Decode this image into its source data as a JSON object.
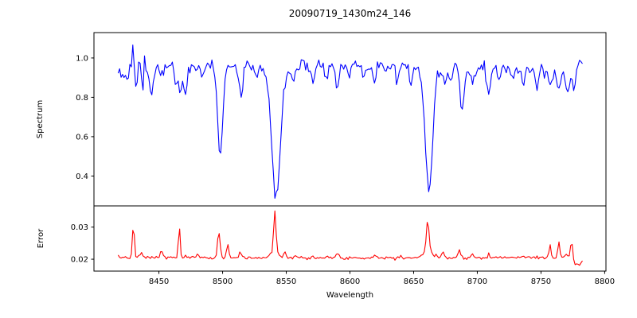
{
  "figure": {
    "background": "#ffffff",
    "axis_color": "#000000"
  },
  "chart_data": {
    "type": "line",
    "title": "20090719_1430m24_146",
    "xlabel": "Wavelength",
    "x_range": [
      8399,
      8801
    ],
    "x_tick_values": [
      8450,
      8500,
      8550,
      8600,
      8650,
      8700,
      8750,
      8800
    ],
    "x_tick_labels": [
      "8450",
      "8500",
      "8550",
      "8600",
      "8650",
      "8700",
      "8750",
      "8800"
    ],
    "grid": false,
    "legend": "none",
    "panels": [
      {
        "name": "spectrum",
        "ylabel": "Spectrum",
        "ylim": [
          0.248,
          1.129
        ],
        "y_tick_values": [
          0.4,
          0.6,
          0.8,
          1.0
        ],
        "y_tick_labels": [
          "0.4",
          "0.6",
          "0.8",
          "1.0"
        ],
        "line_color": "#0000ff",
        "key_absorption_lines": [
          {
            "wavelength": 8498,
            "min_value": 0.48
          },
          {
            "wavelength": 8542,
            "min_value": 0.3
          },
          {
            "wavelength": 8662,
            "min_value": 0.34
          },
          {
            "wavelength": 8688,
            "min_value": 0.76
          }
        ],
        "series": {
          "x_start": 8418,
          "x_end": 8783,
          "step": 1.15,
          "continuum": [
            [
              8418,
              0.95
            ],
            [
              8426,
              0.97
            ],
            [
              8448,
              0.96
            ],
            [
              8460,
              0.955
            ],
            [
              8480,
              0.96
            ],
            [
              8505,
              0.97
            ],
            [
              8530,
              0.96
            ],
            [
              8560,
              0.96
            ],
            [
              8600,
              0.96
            ],
            [
              8640,
              0.96
            ],
            [
              8665,
              0.965
            ],
            [
              8700,
              0.95
            ],
            [
              8730,
              0.945
            ],
            [
              8750,
              0.94
            ],
            [
              8765,
              0.93
            ],
            [
              8772,
              0.925
            ],
            [
              8777,
              0.95
            ],
            [
              8780,
              0.99
            ],
            [
              8783,
              0.97
            ]
          ],
          "noise_sigma": 0.016,
          "noise_boost": {
            "until": 8450,
            "factor": 1.8
          },
          "features": [
            [
              8424,
              -0.09,
              1.2
            ],
            [
              8429,
              0.1,
              1.0
            ],
            [
              8432,
              -0.16,
              1.0
            ],
            [
              8437,
              -0.1,
              1.0
            ],
            [
              8444,
              -0.17,
              1.2
            ],
            [
              8452,
              -0.06,
              1.2
            ],
            [
              8463,
              -0.07,
              1.2
            ],
            [
              8467,
              -0.12,
              1.5
            ],
            [
              8471,
              -0.16,
              1.0
            ],
            [
              8484,
              -0.07,
              1.2
            ],
            [
              8498,
              -0.48,
              2.0
            ],
            [
              8513,
              -0.1,
              1.2
            ],
            [
              8515,
              -0.14,
              1.0
            ],
            [
              8527,
              -0.06,
              1.0
            ],
            [
              8542,
              -0.62,
              3.2
            ],
            [
              8542,
              -0.06,
              7.0
            ],
            [
              8556,
              -0.06,
              1.2
            ],
            [
              8571,
              -0.09,
              1.3
            ],
            [
              8582,
              -0.06,
              1.2
            ],
            [
              8590,
              -0.1,
              1.3
            ],
            [
              8599,
              -0.06,
              1.2
            ],
            [
              8611,
              -0.07,
              1.2
            ],
            [
              8619,
              -0.1,
              1.3
            ],
            [
              8637,
              -0.08,
              1.2
            ],
            [
              8648,
              -0.1,
              1.3
            ],
            [
              8662,
              -0.59,
              2.8
            ],
            [
              8662,
              -0.05,
              6.0
            ],
            [
              8674,
              -0.09,
              1.2
            ],
            [
              8679,
              -0.09,
              1.2
            ],
            [
              8688,
              -0.2,
              1.6
            ],
            [
              8696,
              -0.07,
              1.2
            ],
            [
              8709,
              -0.12,
              1.4
            ],
            [
              8717,
              -0.07,
              1.2
            ],
            [
              8728,
              -0.06,
              1.2
            ],
            [
              8736,
              -0.07,
              1.2
            ],
            [
              8747,
              -0.09,
              1.3
            ],
            [
              8757,
              -0.08,
              1.3
            ],
            [
              8764,
              -0.09,
              1.2
            ],
            [
              8771,
              -0.1,
              1.3
            ],
            [
              8776,
              -0.1,
              1.2
            ]
          ]
        }
      },
      {
        "name": "error",
        "ylabel": "Error",
        "ylim": [
          0.0163,
          0.0366
        ],
        "y_tick_values": [
          0.02,
          0.03
        ],
        "y_tick_labels": [
          "0.02",
          "0.03"
        ],
        "line_color": "#ff0000",
        "key_spikes": [
          {
            "wavelength": 8430,
            "max_value": 0.031
          },
          {
            "wavelength": 8466,
            "max_value": 0.03
          },
          {
            "wavelength": 8497,
            "max_value": 0.028
          },
          {
            "wavelength": 8541,
            "max_value": 0.035
          },
          {
            "wavelength": 8661,
            "max_value": 0.032
          },
          {
            "wavelength": 8774,
            "max_value": 0.026
          }
        ],
        "series": {
          "x_start": 8418,
          "x_end": 8783,
          "step": 1.15,
          "continuum": [
            [
              8418,
              0.0206
            ],
            [
              8540,
              0.0204
            ],
            [
              8660,
              0.0205
            ],
            [
              8774.5,
              0.0205
            ],
            [
              8776.5,
              0.0184
            ],
            [
              8780,
              0.0184
            ],
            [
              8783,
              0.0191
            ]
          ],
          "noise_sigma": 0.00025,
          "noise_boost": {
            "until": 8418,
            "factor": 1.0
          },
          "features": [
            [
              8430,
              0.0105,
              0.7
            ],
            [
              8436,
              0.0015,
              0.8
            ],
            [
              8452,
              0.0018,
              1.0
            ],
            [
              8466,
              0.0096,
              0.7
            ],
            [
              8481,
              0.001,
              0.9
            ],
            [
              8497,
              0.0075,
              1.0
            ],
            [
              8504,
              0.0043,
              0.9
            ],
            [
              8514,
              0.0018,
              0.9
            ],
            [
              8541,
              0.0128,
              0.9
            ],
            [
              8541,
              0.002,
              3.0
            ],
            [
              8549,
              0.0018,
              0.9
            ],
            [
              8557,
              0.0008,
              0.9
            ],
            [
              8571,
              0.001,
              0.9
            ],
            [
              8590,
              0.0013,
              0.9
            ],
            [
              8619,
              0.001,
              0.9
            ],
            [
              8640,
              0.0008,
              0.9
            ],
            [
              8661,
              0.0095,
              1.0
            ],
            [
              8661,
              0.0022,
              3.2
            ],
            [
              8673,
              0.002,
              1.0
            ],
            [
              8686,
              0.0028,
              0.9
            ],
            [
              8696,
              0.001,
              0.9
            ],
            [
              8709,
              0.0012,
              0.9
            ],
            [
              8736,
              0.0008,
              0.9
            ],
            [
              8757,
              0.004,
              0.8
            ],
            [
              8764,
              0.0046,
              0.8
            ],
            [
              8770,
              0.0012,
              0.8
            ],
            [
              8774,
              0.0052,
              0.8
            ]
          ]
        }
      }
    ]
  }
}
